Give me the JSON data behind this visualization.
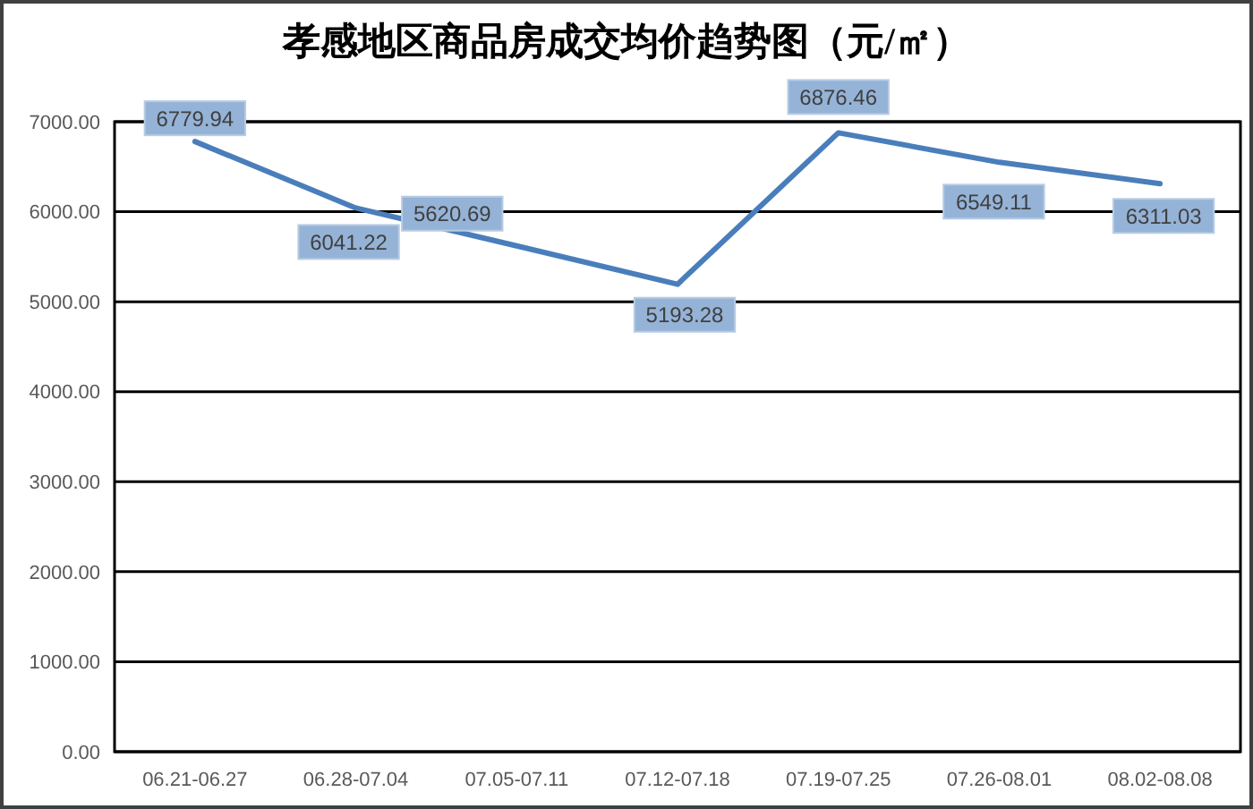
{
  "chart_data": {
    "type": "line",
    "title": "孝感地区商品房成交均价趋势图（元/㎡）",
    "categories": [
      "06.21-06.27",
      "06.28-07.04",
      "07.05-07.11",
      "07.12-07.18",
      "07.19-07.25",
      "07.26-08.01",
      "08.02-08.08"
    ],
    "series": [
      {
        "color": "#4a7ebb",
        "values": [
          6779.94,
          6041.22,
          5620.69,
          5193.28,
          6876.46,
          6549.11,
          6311.03
        ]
      }
    ],
    "ylim": [
      0,
      7000
    ],
    "yticks": [
      {
        "value": 0,
        "label": "0.00"
      },
      {
        "value": 1000,
        "label": "1000.00"
      },
      {
        "value": 2000,
        "label": "2000.00"
      },
      {
        "value": 3000,
        "label": "3000.00"
      },
      {
        "value": 4000,
        "label": "4000.00"
      },
      {
        "value": 5000,
        "label": "5000.00"
      },
      {
        "value": 6000,
        "label": "6000.00"
      },
      {
        "value": 7000,
        "label": "7000.00"
      }
    ],
    "grid": "y",
    "data_labels": true
  }
}
